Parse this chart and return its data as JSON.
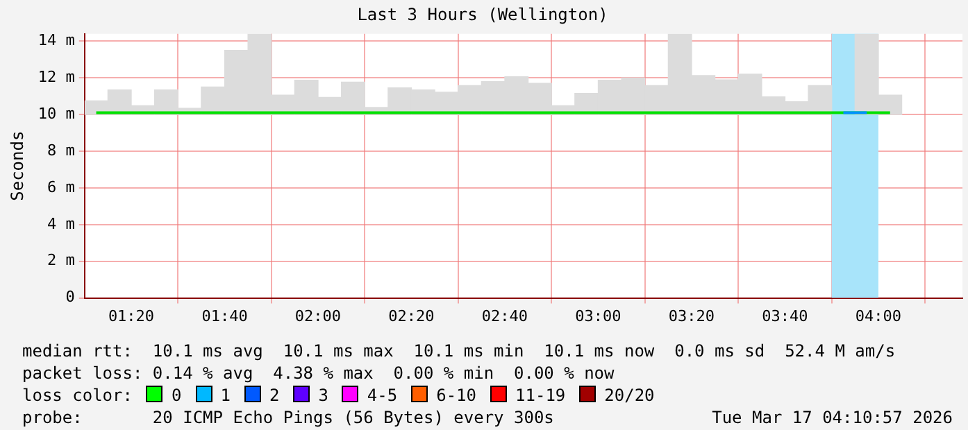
{
  "chart_data": {
    "type": "bar",
    "title": "Last 3 Hours (Wellington)",
    "ylabel": "Seconds",
    "x": [
      1.2083,
      1.2917,
      1.375,
      1.4583,
      1.5417,
      1.625,
      1.7083,
      1.7917,
      1.875,
      1.9583,
      2.0417,
      2.125,
      2.2083,
      2.2917,
      2.375,
      2.4583,
      2.5417,
      2.625,
      2.7083,
      2.7917,
      2.875,
      2.9583,
      3.0417,
      3.125,
      3.2083,
      3.2917,
      3.375,
      3.4583,
      3.5417,
      3.625,
      3.7083,
      3.7917,
      3.875,
      3.9583,
      4.0417
    ],
    "series": [
      {
        "color": "#dcdcdc",
        "base": [
          10,
          10,
          10,
          10,
          10,
          10,
          10,
          10,
          10,
          10,
          10,
          10,
          10,
          10,
          10,
          10,
          10,
          10,
          10,
          10,
          10,
          10,
          10,
          10,
          10,
          10,
          10,
          10,
          10,
          10,
          10,
          10,
          null,
          10,
          10
        ],
        "values": [
          0.75,
          1.34,
          0.48,
          1.34,
          0.34,
          1.5,
          3.5,
          4.4,
          1.06,
          1.87,
          0.94,
          1.77,
          0.39,
          1.46,
          1.34,
          1.22,
          1.58,
          1.8,
          2.06,
          1.7,
          0.48,
          1.15,
          1.87,
          1.99,
          1.58,
          4.4,
          2.13,
          1.89,
          2.2,
          0.96,
          0.7,
          1.58,
          null,
          4.4,
          1.06
        ]
      },
      {
        "type": "step",
        "color": "#00e000",
        "values": [
          10.1,
          10.1,
          10.1,
          10.1,
          10.1,
          10.1,
          10.1,
          10.1,
          10.1,
          10.1,
          10.1,
          10.1,
          10.1,
          10.1,
          10.1,
          10.1,
          10.1,
          10.1,
          10.1,
          10.1,
          10.1,
          10.1,
          10.1,
          10.1,
          10.1,
          10.1,
          10.1,
          10.1,
          10.1,
          10.1,
          10.1,
          10.1,
          10.1,
          10.1,
          10.1
        ]
      },
      {
        "type": "step",
        "color": "#0090ff",
        "values": [
          null,
          null,
          null,
          null,
          null,
          null,
          null,
          null,
          null,
          null,
          null,
          null,
          null,
          null,
          null,
          null,
          null,
          null,
          null,
          null,
          null,
          null,
          null,
          null,
          null,
          null,
          null,
          null,
          null,
          null,
          null,
          null,
          10.1,
          10.1,
          null
        ]
      }
    ],
    "bands": [
      {
        "axis": "x",
        "from": 3.8333,
        "to": 4.0,
        "color": "#a8e4fa"
      }
    ],
    "xlim": [
      1.1667,
      4.3
    ],
    "xticks": [
      {
        "value": 1.3333,
        "label": "01:20"
      },
      {
        "value": 1.6667,
        "label": "01:40"
      },
      {
        "value": 2,
        "label": "02:00"
      },
      {
        "value": 2.3333,
        "label": "02:20"
      },
      {
        "value": 2.6667,
        "label": "02:40"
      },
      {
        "value": 3,
        "label": "03:00"
      },
      {
        "value": 3.3333,
        "label": "03:20"
      },
      {
        "value": 3.6667,
        "label": "03:40"
      },
      {
        "value": 4,
        "label": "04:00"
      }
    ],
    "ylim": [
      0,
      14.4
    ],
    "yticks": [
      0,
      {
        "value": 2,
        "label": "2 m"
      },
      {
        "value": 4,
        "label": "4 m"
      },
      {
        "value": 6,
        "label": "6 m"
      },
      {
        "value": 8,
        "label": "8 m"
      },
      {
        "value": 10,
        "label": "10 m"
      },
      {
        "value": 12,
        "label": "12 m"
      },
      {
        "value": 14,
        "label": "14 m"
      }
    ],
    "grid": true,
    "legend": false,
    "marker": "none",
    "line_style": "solid",
    "annotations": [
      "median rtt:  10.1 ms avg  10.1 ms max  10.1 ms min  10.1 ms now  0.0 ms sd  52.4 M am/s",
      "packet loss: 0.14 % avg  4.38 % max  0.00 % min  0.00 % now",
      "loss color:",
      "0",
      "1",
      "2",
      "3",
      "4-5",
      "6-10",
      "11-19",
      "20/20",
      "probe:       20 ICMP Echo Pings (56 Bytes) every 300s",
      "Tue Mar 17 04:10:57 2026"
    ]
  }
}
